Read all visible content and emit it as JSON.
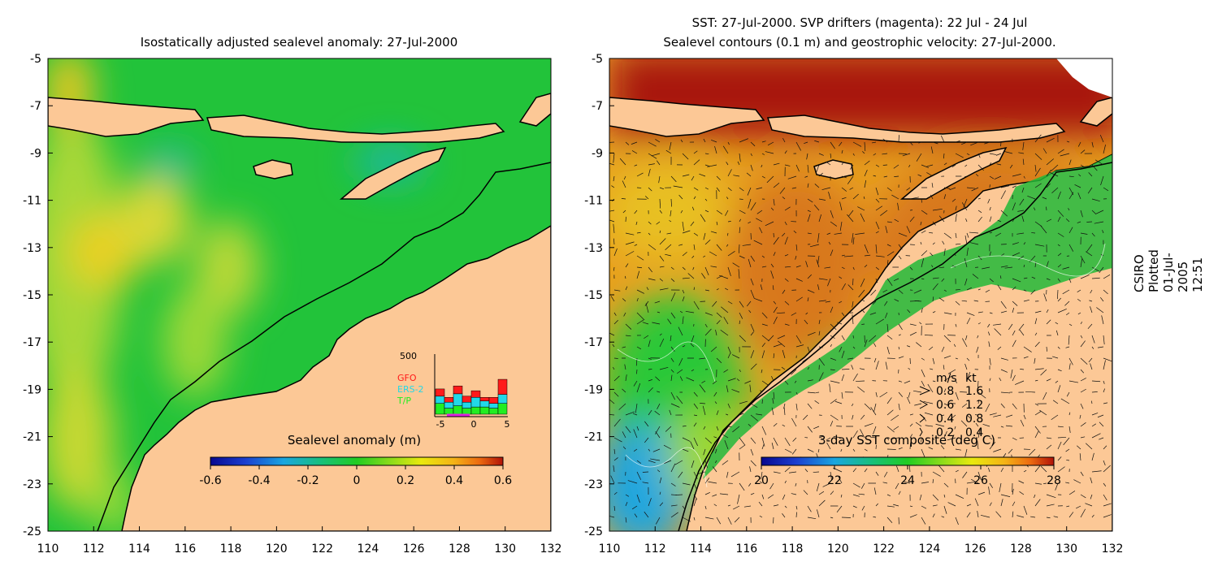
{
  "left_panel": {
    "title": "Isostatically adjusted sealevel anomaly: 27-Jul-2000",
    "colorbar_title": "Sealevel anomaly (m)",
    "colorbar_ticks": [
      "-0.6",
      "-0.4",
      "-0.2",
      "0",
      "0.2",
      "0.4",
      "0.6"
    ],
    "colors": [
      "#08088f",
      "#1b3fd0",
      "#1aa6e0",
      "#17c07a",
      "#22cc22",
      "#8fdc1a",
      "#e9e90e",
      "#f4b416",
      "#ec6a10",
      "#b01208"
    ]
  },
  "right_panel": {
    "title_line1": "SST: 27-Jul-2000. SVP drifters (magenta): 22 Jul - 24 Jul",
    "title_line2": "Sealevel contours (0.1 m) and geostrophic velocity: 27-Jul-2000.",
    "colorbar_title": "3-day SST composite (deg C)",
    "colorbar_ticks": [
      "20",
      "22",
      "24",
      "26",
      "28"
    ]
  },
  "axes": {
    "lat_ticks": [
      "-5",
      "-7",
      "-9",
      "-11",
      "-13",
      "-15",
      "-17",
      "-19",
      "-21",
      "-23",
      "-25"
    ],
    "lon_ticks": [
      "110",
      "112",
      "114",
      "116",
      "118",
      "120",
      "122",
      "124",
      "126",
      "128",
      "130",
      "132"
    ]
  },
  "velocity_legend": {
    "header_ms": "m/s",
    "header_kt": "kt",
    "rows": [
      {
        "ms": "0.8",
        "kt": "1.6"
      },
      {
        "ms": "0.6",
        "kt": "1.2"
      },
      {
        "ms": "0.4",
        "kt": "0.8"
      },
      {
        "ms": "0.2",
        "kt": "0.4"
      }
    ]
  },
  "inset": {
    "ymax_label": "500",
    "legend": [
      {
        "label": "GFO",
        "color": "#ff1a1a"
      },
      {
        "label": "ERS-2",
        "color": "#22d8e8"
      },
      {
        "label": "T/P",
        "color": "#22ee22"
      }
    ],
    "x_ticks": [
      "-5",
      "0",
      "5"
    ],
    "bars": [
      {
        "tp": 0.18,
        "ers": 0.12,
        "gfo": 0.12
      },
      {
        "tp": 0.1,
        "ers": 0.1,
        "gfo": 0.08
      },
      {
        "tp": 0.14,
        "ers": 0.2,
        "gfo": 0.13
      },
      {
        "tp": 0.1,
        "ers": 0.1,
        "gfo": 0.1
      },
      {
        "tp": 0.12,
        "ers": 0.16,
        "gfo": 0.11
      },
      {
        "tp": 0.12,
        "ers": 0.1,
        "gfo": 0.06
      },
      {
        "tp": 0.1,
        "ers": 0.08,
        "gfo": 0.1
      },
      {
        "tp": 0.18,
        "ers": 0.15,
        "gfo": 0.25
      }
    ]
  },
  "side_label": "CSIRO Plotted 01-Jul-2005 12:51"
}
